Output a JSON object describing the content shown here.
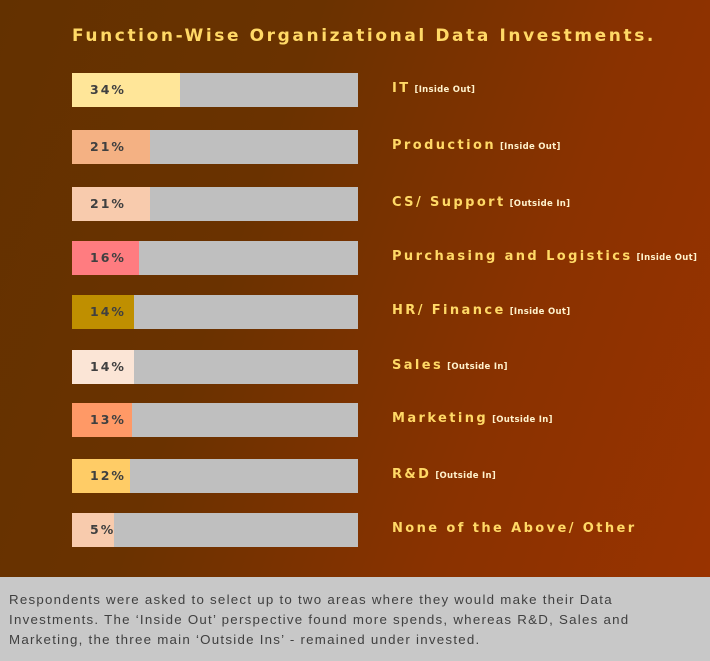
{
  "chart_data": {
    "type": "bar",
    "orientation": "horizontal",
    "title": "Function-Wise Organizational Data Investments.",
    "unit": "%",
    "categories": [
      "IT",
      "Production",
      "CS/ Support",
      "Purchasing and Logistics",
      "HR/ Finance",
      "Sales",
      "Marketing",
      "R&D",
      "None of the Above/ Other"
    ],
    "tags": [
      "[Inside Out]",
      "[Inside Out]",
      "[Outside In]",
      "[Inside Out]",
      "[Inside Out]",
      "[Outside In]",
      "[Outside In]",
      "[Outside In]",
      ""
    ],
    "values": [
      34,
      21,
      21,
      16,
      14,
      14,
      13,
      12,
      5
    ],
    "value_labels": [
      "34%",
      "21%",
      "21%",
      "16%",
      "14%",
      "14%",
      "13%",
      "12%",
      "5%"
    ],
    "colors": [
      "#ffe699",
      "#f4b183",
      "#f8cbad",
      "#ff7c80",
      "#bf8f00",
      "#fbe5d6",
      "#ff9966",
      "#ffcc66",
      "#f8cbad"
    ],
    "track_color": "#bfbfbf",
    "grid": false
  },
  "footer": {
    "text": "Respondents were asked to select up to two areas where they would make their Data Investments. The ‘Inside Out’ perspective found more spends, whereas R&D, Sales and Marketing, the three main ‘Outside Ins’ - remained under invested."
  }
}
